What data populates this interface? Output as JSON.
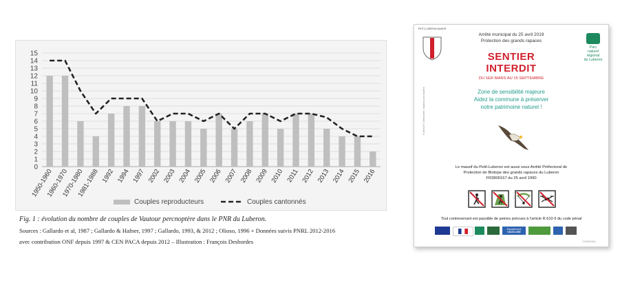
{
  "chart_data": {
    "type": "bar",
    "categories": [
      "1950-1960",
      "1960-1970",
      "1970-1980",
      "1981-1988",
      "1992",
      "1994",
      "1997",
      "2002",
      "2003",
      "2004",
      "2005",
      "2006",
      "2007",
      "2008",
      "2009",
      "2010",
      "2011",
      "2012",
      "2013",
      "2014",
      "2015",
      "2016"
    ],
    "series": [
      {
        "name": "Couples reproducteurs",
        "type": "bar",
        "color": "#bfbfbf",
        "values": [
          12,
          12,
          6,
          4,
          7,
          8,
          8,
          6,
          6,
          6,
          5,
          7,
          5,
          6,
          7,
          5,
          7,
          7,
          5,
          4,
          4,
          2
        ]
      },
      {
        "name": "Couples cantonnés",
        "type": "line",
        "style": "dashed",
        "color": "#222222",
        "values": [
          14,
          14,
          10,
          7,
          9,
          9,
          9,
          6,
          7,
          7,
          6,
          7,
          5,
          7,
          7,
          6,
          7,
          7,
          6.5,
          5,
          4,
          4
        ]
      }
    ],
    "yticks": [
      "0",
      "1",
      "2",
      "3",
      "4",
      "5",
      "6",
      "7",
      "8",
      "9",
      "10",
      "11",
      "12",
      "13",
      "14",
      "15"
    ],
    "ylim": [
      0,
      15
    ],
    "grid": true,
    "legend_position": "bottom"
  },
  "caption": {
    "title": "Fig. 1 : évolution du nombre de couples de Vautour percnoptère dans le PNR du Luberon.",
    "sources": "Sources : Gallardo et al, 1987 ; Gallardo & Hafner, 1997 ; Gallardo, 1993, & 2012 ; Olioso, 1996 + Données suivis PNRL 2012-2016",
    "contributions": "avec contribution ONF depuis 1997 & CEN PACA depuis 2012 – Illustration : François Desbordes"
  },
  "sign": {
    "decree_line1": "Arrêté municipal du 25 avril 2019",
    "decree_line2": "Protection des grands rapaces",
    "title_line1": "SENTIER",
    "title_line2": "INTERDIT",
    "period": "DU 1ER MARS AU 15 SEPTEMBRE",
    "zone_line1": "Zone de sensibilité majeure",
    "zone_line2": "Aidez la commune à préserver",
    "zone_line3": "notre patrimoine naturel !",
    "biotope_line1": "Le massif du Petit-Luberon est aussi sous Arrêté Préfectoral de",
    "biotope_line2": "Protection de Biotope des grands rapaces du Luberon",
    "biotope_line3": "FR3800167 du 25 avril 1990",
    "penal": "Tout contrevenant est passible de peines prévues à l'article R.610-5 du code pénal",
    "photo_credit": "© dessin F. Desbordes / Vautour percnoptère",
    "shield_label": "PETIT-LUBERON MANOR",
    "park_line1": "Parc",
    "park_line2": "naturel",
    "park_line3": "régional",
    "park_line4": "du Luberon",
    "vaucluse_line1": "Département",
    "vaucluse_line2": "VAUCLUSE",
    "stamp": "COMMUNAL",
    "colors": {
      "title_red": "#d11f2b",
      "zone_teal": "#1f9a8a",
      "park_green": "#1d8a5d"
    },
    "pictograms": [
      "no-hiking-icon",
      "no-climbing-icon",
      "no-paragliding-icon",
      "no-drone-icon"
    ]
  }
}
